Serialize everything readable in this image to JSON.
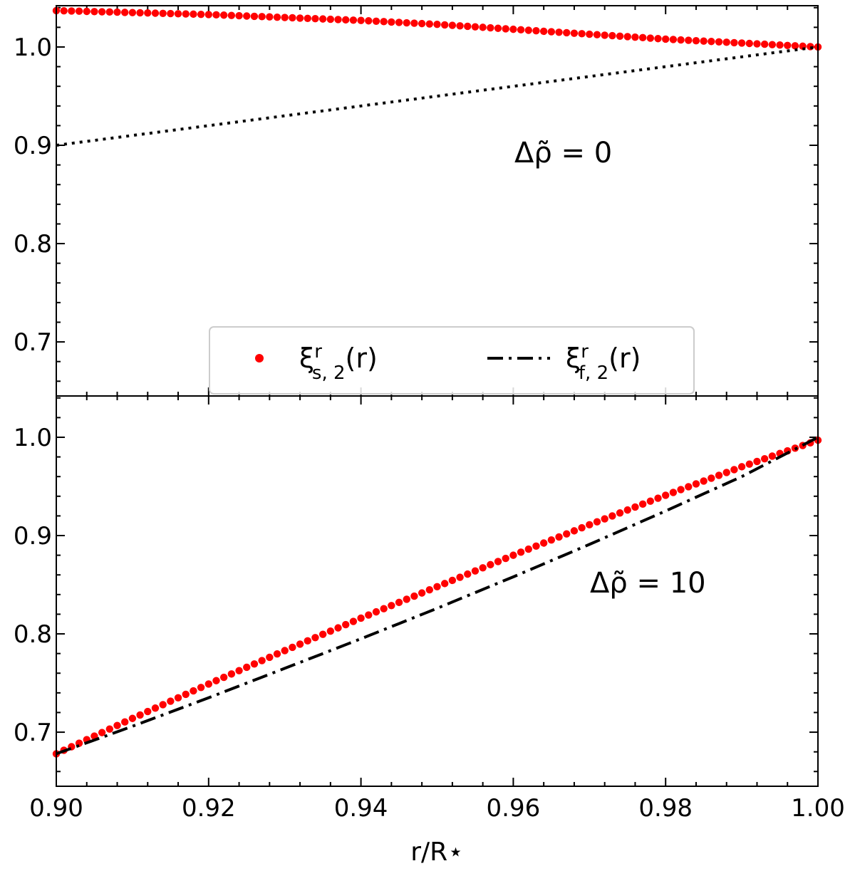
{
  "chart_data": [
    {
      "type": "line",
      "annotation": "Δρ̃ = 0",
      "xlim": [
        0.9,
        1.0
      ],
      "ylim": [
        0.645,
        1.042
      ],
      "yticks": [
        0.7,
        0.8,
        0.9,
        1.0
      ],
      "ytick_labels": [
        "0.7",
        "0.8",
        "0.9",
        "1.0"
      ],
      "grid": false,
      "legend": {
        "placement": "lower-center",
        "columns": 2
      },
      "series": [
        {
          "name": "ξ^r_{s,2}(r)",
          "style": "dots",
          "color": "#ff0000",
          "x": [
            0.9,
            0.91,
            0.92,
            0.93,
            0.94,
            0.95,
            0.96,
            0.97,
            0.98,
            0.99,
            1.0
          ],
          "y": [
            1.037,
            1.035,
            1.033,
            1.03,
            1.027,
            1.023,
            1.018,
            1.013,
            1.008,
            1.004,
            1.0
          ]
        },
        {
          "name": "",
          "style": "dotted",
          "color": "#000000",
          "x": [
            0.9,
            1.0
          ],
          "y": [
            0.9,
            1.0
          ]
        }
      ]
    },
    {
      "type": "line",
      "annotation": "Δρ̃ = 10",
      "xlim": [
        0.9,
        1.0
      ],
      "ylim": [
        0.645,
        1.042
      ],
      "yticks": [
        0.7,
        0.8,
        0.9,
        1.0
      ],
      "ytick_labels": [
        "0.7",
        "0.8",
        "0.9",
        "1.0"
      ],
      "xticks": [
        0.9,
        0.92,
        0.94,
        0.96,
        0.98,
        1.0
      ],
      "xtick_labels": [
        "0.90",
        "0.92",
        "0.94",
        "0.96",
        "0.98",
        "1.00"
      ],
      "xlabel": "r/R⋆",
      "grid": false,
      "series": [
        {
          "name": "ξ^r_{s,2}(r)",
          "style": "dots",
          "color": "#ff0000",
          "x": [
            0.9,
            0.91,
            0.92,
            0.93,
            0.94,
            0.95,
            0.96,
            0.97,
            0.98,
            0.99,
            1.0
          ],
          "y": [
            0.678,
            0.714,
            0.749,
            0.783,
            0.816,
            0.848,
            0.88,
            0.911,
            0.941,
            0.97,
            0.997
          ]
        },
        {
          "name": "ξ^r_{f,2}(r)",
          "style": "dashdot",
          "color": "#000000",
          "x": [
            0.9,
            0.91,
            0.92,
            0.93,
            0.94,
            0.95,
            0.96,
            0.97,
            0.98,
            0.99,
            1.0
          ],
          "y": [
            0.678,
            0.706,
            0.735,
            0.765,
            0.795,
            0.826,
            0.858,
            0.891,
            0.925,
            0.96,
            1.0
          ]
        }
      ]
    }
  ],
  "legend": {
    "items": [
      {
        "label_base": "ξ",
        "label_sup": "r",
        "label_sub": "s, 2",
        "label_tail": "(r)",
        "color": "#ff0000",
        "style": "dots"
      },
      {
        "label_base": "ξ",
        "label_sup": "r",
        "label_sub": "f, 2",
        "label_tail": "(r)",
        "color": "#000000",
        "style": "dashdot"
      }
    ]
  }
}
